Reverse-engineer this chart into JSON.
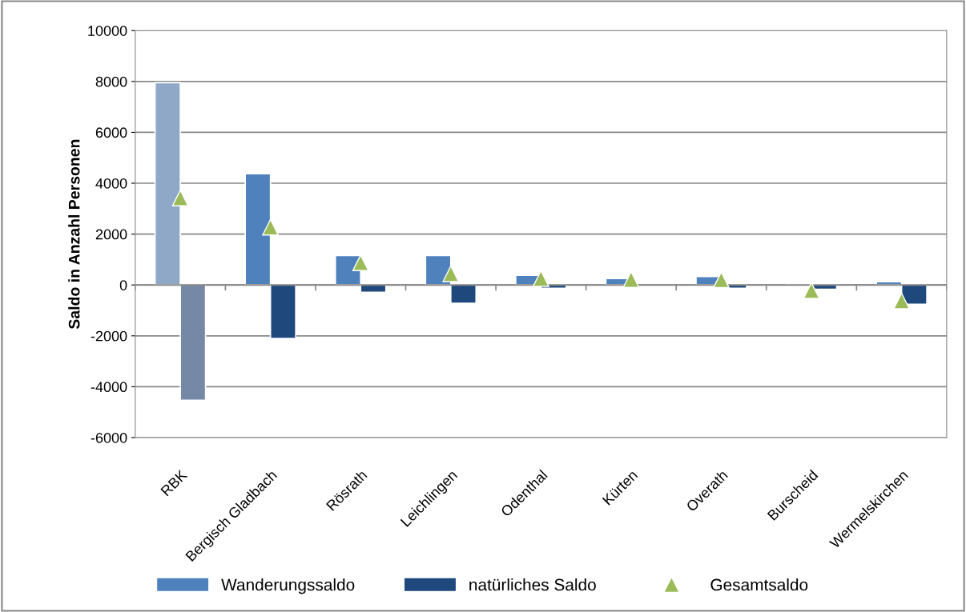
{
  "chart_data": {
    "type": "bar",
    "ylabel": "Saldo in Anzahl Personen",
    "categories": [
      "RBK",
      "Bergisch Gladbach",
      "Rösrath",
      "Leichlingen",
      "Odenthal",
      "Kürten",
      "Overath",
      "Burscheid",
      "Wermelskirchen"
    ],
    "series": [
      {
        "name": "Wanderungssaldo",
        "color": "#4f81bd",
        "colors": [
          "#8fa8c8",
          "#4f81bd",
          "#4f81bd",
          "#4f81bd",
          "#4f81bd",
          "#4f81bd",
          "#4f81bd",
          "#4f81bd",
          "#4f81bd"
        ],
        "values": [
          7950,
          4370,
          1160,
          1160,
          380,
          250,
          330,
          -50,
          130
        ]
      },
      {
        "name": "natürliches Saldo",
        "color": "#1f497d",
        "colors": [
          "#7589a6",
          "#1f497d",
          "#1f497d",
          "#1f497d",
          "#1f497d",
          "#1f497d",
          "#1f497d",
          "#1f497d",
          "#1f497d"
        ],
        "values": [
          -4530,
          -2100,
          -290,
          -720,
          -130,
          null,
          -130,
          -170,
          -760
        ]
      },
      {
        "name": "Gesamtsaldo",
        "type": "scatter",
        "marker": "triangle",
        "color": "#9bbb59",
        "values": [
          3420,
          2270,
          870,
          440,
          250,
          210,
          200,
          -220,
          -630
        ]
      }
    ],
    "ylim": [
      -6000,
      10000
    ],
    "yticks": [
      -6000,
      -4000,
      -2000,
      0,
      2000,
      4000,
      6000,
      8000,
      10000
    ],
    "grid": "y",
    "legend": "bottom"
  }
}
